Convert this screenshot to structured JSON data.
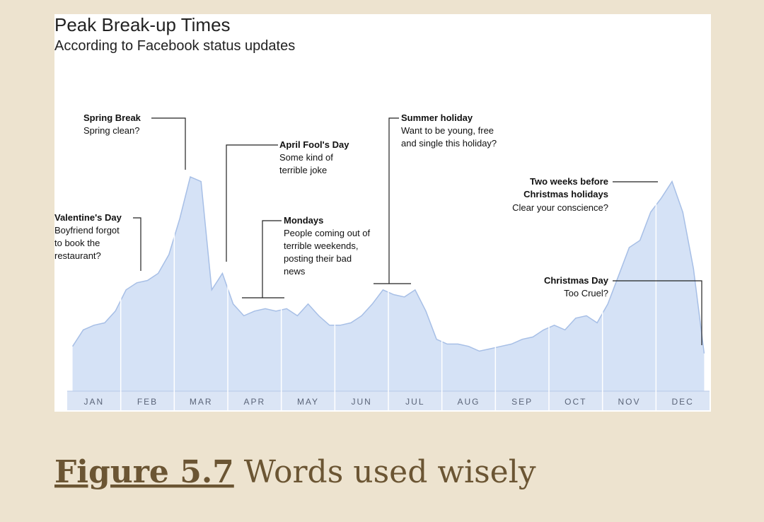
{
  "chart_data": {
    "type": "area",
    "title": "Peak Break-up Times",
    "subtitle": "According to Facebook status updates",
    "categories": [
      null,
      null,
      "JAN",
      null,
      null,
      null,
      null,
      "FEB",
      null,
      null,
      null,
      null,
      "MAR",
      null,
      null,
      null,
      null,
      "APR",
      null,
      null,
      null,
      null,
      "MAY",
      null,
      null,
      null,
      null,
      "JUN",
      null,
      null,
      null,
      null,
      "JUL",
      null,
      null,
      null,
      null,
      "AUG",
      null,
      null,
      null,
      null,
      "SEP",
      null,
      null,
      null,
      null,
      "OCT",
      null,
      null,
      null,
      null,
      "NOV",
      null,
      null,
      null,
      null,
      "DEC",
      null,
      null
    ],
    "values": [
      19,
      26,
      28,
      29,
      34,
      43,
      46,
      47,
      50,
      58,
      73,
      91,
      89,
      43,
      50,
      37,
      32,
      34,
      35,
      34,
      35,
      32,
      37,
      32,
      28,
      28,
      29,
      32,
      37,
      43,
      41,
      40,
      43,
      34,
      22,
      20,
      20,
      19,
      17,
      18,
      19,
      20,
      22,
      23,
      26,
      28,
      26,
      31,
      32,
      29,
      37,
      49,
      61,
      64,
      76,
      82,
      89,
      76,
      52,
      16
    ],
    "color": "#d5e2f6",
    "ylim": [
      0,
      100
    ],
    "annotations": [
      {
        "title": "Spring Break",
        "text": [
          "Spring clean?"
        ]
      },
      {
        "title": "Valentine's Day",
        "text": [
          "Boyfriend forgot",
          "to book the",
          "restaurant?"
        ]
      },
      {
        "title": "April Fool's Day",
        "text": [
          "Some kind of",
          "terrible joke"
        ]
      },
      {
        "title": "Mondays",
        "text": [
          "People coming out of",
          "terrible weekends,",
          "posting their bad",
          "news"
        ]
      },
      {
        "title": "Summer holiday",
        "text": [
          "Want to be young, free",
          "and single this holiday?"
        ]
      },
      {
        "title": "Two weeks before",
        "title2": "Christmas holidays",
        "text": [
          "Clear your conscience?"
        ]
      },
      {
        "title": "Christmas Day",
        "text": [
          "Too Cruel?"
        ]
      }
    ]
  },
  "caption": {
    "label": "Figure 5.7",
    "text": "Words used wisely"
  }
}
